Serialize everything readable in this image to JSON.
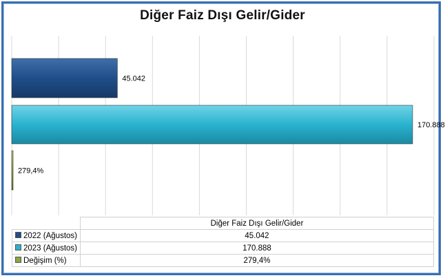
{
  "chart_data": {
    "type": "bar",
    "orientation": "horizontal",
    "title": "Diğer Faiz Dışı Gelir/Gider",
    "category": "Diğer Faiz Dışı Gelir/Gider",
    "series": [
      {
        "name": "2022 (Ağustos)",
        "value": 45042,
        "label": "45.042",
        "color": "#1f4e8a"
      },
      {
        "name": "2023 (Ağustos)",
        "value": 170888,
        "label": "170.888",
        "color": "#2ab3cf"
      },
      {
        "name": "Değişim (%)",
        "value": 279.4,
        "label": "279,4%",
        "color": "#8aa83c"
      }
    ],
    "xlim": [
      0,
      180000
    ],
    "grid": true,
    "legend": "data-table"
  }
}
